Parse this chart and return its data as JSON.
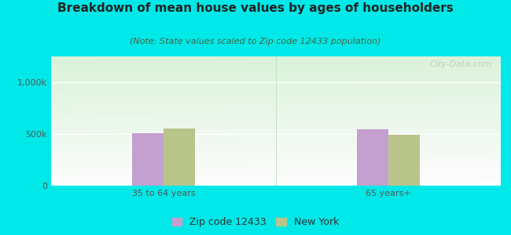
{
  "title": "Breakdown of mean house values by ages of householders",
  "subtitle": "(Note: State values scaled to Zip code 12433 population)",
  "categories": [
    "35 to 64 years",
    "65 years+"
  ],
  "zip_values": [
    510000,
    545000
  ],
  "ny_values": [
    550000,
    490000
  ],
  "zip_color": "#c4a0d0",
  "ny_color": "#b8c48a",
  "background_outer": "#00e8e8",
  "background_plot_top_left": "#d8eeda",
  "background_plot_top_right": "#eef8f0",
  "background_plot_bottom": "#f8fdf8",
  "ylim": [
    0,
    1250000
  ],
  "ytick_vals": [
    0,
    500000,
    1000000
  ],
  "ytick_labels": [
    "0",
    "500k",
    "1,000k"
  ],
  "legend_labels": [
    "Zip code 12433",
    "New York"
  ],
  "watermark": "City-Data.com",
  "bar_width": 0.28,
  "group_positions": [
    1.0,
    3.0
  ],
  "title_fontsize": 11,
  "subtitle_fontsize": 8,
  "tick_fontsize": 8,
  "legend_fontsize": 9
}
